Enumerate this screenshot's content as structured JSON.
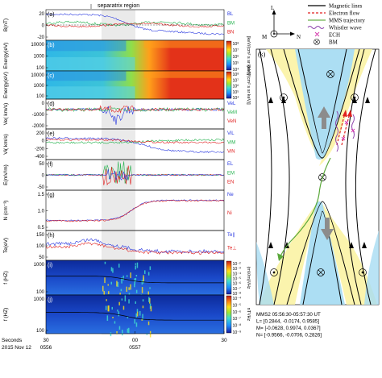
{
  "left": {
    "region_label": "separatrix region",
    "time_axis": {
      "title_lines": [
        "Seconds",
        "2015 Nov 12"
      ],
      "ticks": [
        {
          "top": "30",
          "bottom": "0556"
        },
        {
          "top": "00",
          "bottom": "0557"
        },
        {
          "top": "30",
          "bottom": ""
        }
      ]
    },
    "panels": [
      {
        "tag": "(a)",
        "ylabel": "B(nT)",
        "yticks": [
          "20",
          "0",
          "-20"
        ],
        "legend": [
          {
            "text": "B_L",
            "color": "#2a39e0"
          },
          {
            "text": "B_M",
            "color": "#22b14c"
          },
          {
            "text": "B_N",
            "color": "#e02020"
          }
        ]
      },
      {
        "tag": "(b)",
        "ylabel": "Energy(eV)",
        "yticks": [
          "10000",
          "1000",
          "100"
        ],
        "spectrogram": true,
        "colorbar": {
          "title": "[keV/(cm² s sr keV)]",
          "ticks": [
            "10⁸",
            "10⁷",
            "10⁶",
            "10⁵",
            "10⁴"
          ]
        }
      },
      {
        "tag": "(c)",
        "ylabel": "Energy(eV)",
        "yticks": [
          "10000",
          "1000",
          "100"
        ],
        "spectrogram": true,
        "colorbar": {
          "title": "[keV/(cm² s sr keV)]",
          "ticks": [
            "10⁸",
            "10⁷",
            "10⁶",
            "10⁵",
            "10⁴"
          ]
        }
      },
      {
        "tag": "(d)",
        "ylabel": "Ve( km/s)",
        "yticks": [
          "0",
          "-1000",
          "-2000"
        ],
        "legend": [
          {
            "text": "Ve_L",
            "color": "#2a39e0"
          },
          {
            "text": "Ve_M",
            "color": "#22b14c"
          },
          {
            "text": "Ve_N",
            "color": "#e02020"
          }
        ]
      },
      {
        "tag": "(e)",
        "ylabel": "Vi( km/s)",
        "yticks": [
          "200",
          "0",
          "-200",
          "-400"
        ],
        "legend": [
          {
            "text": "Vi_L",
            "color": "#2a39e0"
          },
          {
            "text": "Vi_M",
            "color": "#22b14c"
          },
          {
            "text": "Vi_N",
            "color": "#e02020"
          }
        ]
      },
      {
        "tag": "(f)",
        "ylabel": "E(mV/m)",
        "yticks": [
          "50",
          "0",
          "-50"
        ],
        "legend": [
          {
            "text": "E_L",
            "color": "#2a39e0"
          },
          {
            "text": "E_M",
            "color": "#22b14c"
          },
          {
            "text": "E_N",
            "color": "#e02020"
          }
        ]
      },
      {
        "tag": "(g)",
        "ylabel": "N (cm⁻³)",
        "yticks": [
          "1.5",
          "1.0",
          "0.5"
        ],
        "legend": [
          {
            "text": "Ne",
            "color": "#2a39e0"
          },
          {
            "text": "Ni",
            "color": "#e02020"
          }
        ]
      },
      {
        "tag": "(h)",
        "ylabel": "Te(eV)",
        "yticks": [
          "150",
          "100",
          "50"
        ],
        "legend": [
          {
            "text": "Te∥",
            "color": "#2a39e0"
          },
          {
            "text": "Te⊥",
            "color": "#e02020"
          }
        ]
      },
      {
        "tag": "(i)",
        "ylabel": "f (HZ)",
        "yticks": [
          "1000",
          "100"
        ],
        "spectrogram": true,
        "colorbar": {
          "title": "(mV/m)²/Hz",
          "ticks": [
            "10⁻²",
            "10⁻³",
            "10⁻⁴",
            "10⁻⁵",
            "10⁻⁶",
            "10⁻⁷",
            "10⁻⁸"
          ]
        }
      },
      {
        "tag": "(j)",
        "ylabel": "f (HZ)",
        "yticks": [
          "1000",
          "100"
        ],
        "spectrogram": true,
        "colorbar": {
          "title": "nT²/Hz",
          "ticks": [
            "10⁻⁴",
            "10⁻⁵",
            "10⁻⁶",
            "10⁻⁷",
            "10⁻⁸",
            "10⁻⁹"
          ]
        }
      }
    ]
  },
  "right": {
    "panel_tag": "(k)",
    "axes": {
      "L": "L",
      "M": "M",
      "N": "N"
    },
    "legend": [
      {
        "text": "Magnetic lines",
        "color": "#000000",
        "style": "solid"
      },
      {
        "text": "Electron flow",
        "color": "#e02020",
        "style": "dashed"
      },
      {
        "text": "MMS trajectory",
        "color": "#6ab04c",
        "style": "solid"
      },
      {
        "text": "Whistler wave",
        "color": "#8e44ad",
        "style": "wave"
      },
      {
        "text": "ECH",
        "color": "#d63fb0",
        "style": "cross"
      },
      {
        "text": "B_M",
        "color": "#000000",
        "style": "otimes"
      }
    ],
    "footer_lines": [
      "MMS2 05:56:30-05:57:30 UT",
      "L= [0.2844, -0.0174, 0.9585]",
      "M= [-0.0628, 0.9974, 0.0367]",
      "N= [-0.9566, -0.0706, 0.2826]"
    ]
  }
}
